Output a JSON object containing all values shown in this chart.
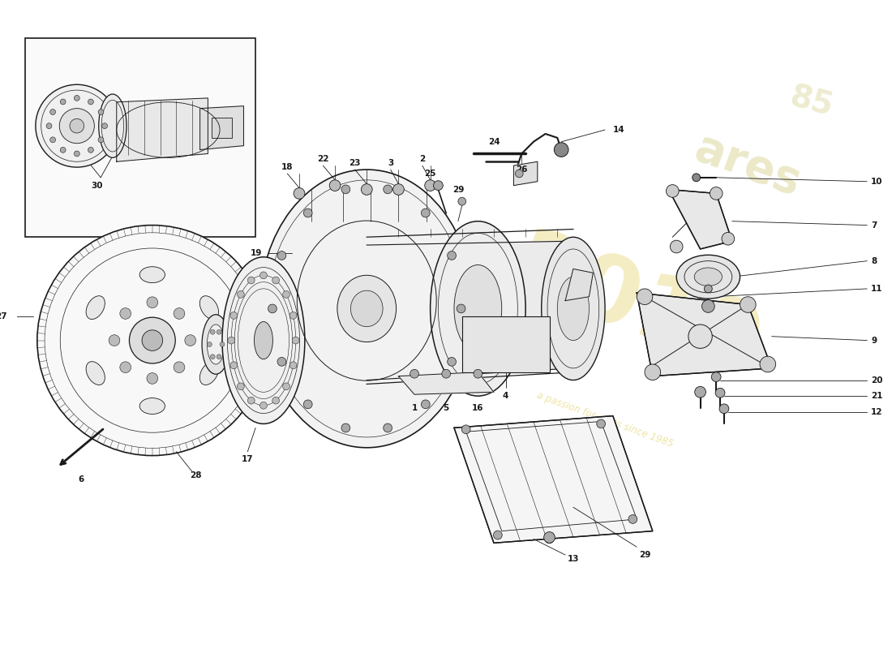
{
  "bg_color": "#ffffff",
  "line_color": "#1a1a1a",
  "wm_color1": "#e8d87a",
  "wm_color2": "#d4c860",
  "figsize": [
    11.0,
    8.0
  ],
  "dpi": 100
}
